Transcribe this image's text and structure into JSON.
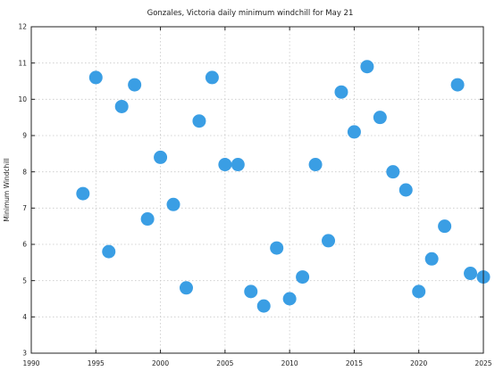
{
  "chart_data": {
    "type": "scatter",
    "title": "Gonzales, Victoria daily minimum windchill for May 21",
    "xlabel": "",
    "ylabel": "Minimum Windchill",
    "xlim": [
      1990,
      2025
    ],
    "ylim": [
      3,
      12
    ],
    "xticks": [
      1990,
      1995,
      2000,
      2005,
      2010,
      2015,
      2020,
      2025
    ],
    "yticks": [
      3,
      4,
      5,
      6,
      7,
      8,
      9,
      10,
      11,
      12
    ],
    "grid": true,
    "marker_color": "#3a9ee4",
    "points": [
      {
        "x": 1994,
        "y": 7.4
      },
      {
        "x": 1995,
        "y": 10.6
      },
      {
        "x": 1996,
        "y": 5.8
      },
      {
        "x": 1997,
        "y": 9.8
      },
      {
        "x": 1998,
        "y": 10.4
      },
      {
        "x": 1999,
        "y": 6.7
      },
      {
        "x": 2000,
        "y": 8.4
      },
      {
        "x": 2001,
        "y": 7.1
      },
      {
        "x": 2002,
        "y": 4.8
      },
      {
        "x": 2003,
        "y": 9.4
      },
      {
        "x": 2004,
        "y": 10.6
      },
      {
        "x": 2005,
        "y": 8.2
      },
      {
        "x": 2006,
        "y": 8.2
      },
      {
        "x": 2007,
        "y": 4.7
      },
      {
        "x": 2008,
        "y": 4.3
      },
      {
        "x": 2009,
        "y": 5.9
      },
      {
        "x": 2010,
        "y": 4.5
      },
      {
        "x": 2011,
        "y": 5.1
      },
      {
        "x": 2012,
        "y": 8.2
      },
      {
        "x": 2013,
        "y": 6.1
      },
      {
        "x": 2014,
        "y": 10.2
      },
      {
        "x": 2015,
        "y": 9.1
      },
      {
        "x": 2016,
        "y": 10.9
      },
      {
        "x": 2017,
        "y": 9.5
      },
      {
        "x": 2018,
        "y": 8.0
      },
      {
        "x": 2019,
        "y": 7.5
      },
      {
        "x": 2020,
        "y": 4.7
      },
      {
        "x": 2021,
        "y": 5.6
      },
      {
        "x": 2022,
        "y": 6.5
      },
      {
        "x": 2023,
        "y": 10.4
      },
      {
        "x": 2024,
        "y": 5.2
      },
      {
        "x": 2025,
        "y": 5.1
      }
    ]
  }
}
